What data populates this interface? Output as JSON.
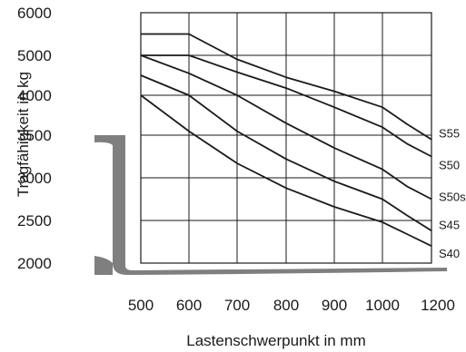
{
  "chart_data": {
    "type": "line",
    "xlabel": "Lastenschwerpunkt in mm",
    "ylabel": "Tragfähigkeit in kg",
    "xlim": [
      500,
      1200
    ],
    "ylim": [
      2000,
      6000
    ],
    "x_ticks": [
      "500",
      "600",
      "700",
      "800",
      "900",
      "1000",
      "1200"
    ],
    "y_ticks": [
      "2000",
      "2500",
      "3000",
      "3500",
      "4000",
      "5000",
      "6000"
    ],
    "grid": true,
    "series": [
      {
        "name": "S55",
        "x": [
          500,
          600,
          700,
          800,
          900,
          1000,
          1100,
          1200
        ],
        "y": [
          5500,
          5500,
          4900,
          4450,
          4100,
          3850,
          3640,
          3450
        ]
      },
      {
        "name": "S50",
        "x": [
          500,
          600,
          700,
          800,
          900,
          1000,
          1100,
          1200
        ],
        "y": [
          5000,
          5000,
          4580,
          4180,
          3850,
          3600,
          3400,
          3250
        ]
      },
      {
        "name": "S50s",
        "x": [
          500,
          600,
          700,
          800,
          900,
          1000,
          1100,
          1200
        ],
        "y": [
          5000,
          4550,
          4000,
          3650,
          3350,
          3100,
          2900,
          2750
        ]
      },
      {
        "name": "S45",
        "x": [
          500,
          600,
          700,
          800,
          900,
          1000,
          1100,
          1200
        ],
        "y": [
          4500,
          4000,
          3550,
          3220,
          2960,
          2750,
          2560,
          2380
        ]
      },
      {
        "name": "S40",
        "x": [
          500,
          600,
          700,
          800,
          900,
          1000,
          1100,
          1200
        ],
        "y": [
          4000,
          3550,
          3170,
          2880,
          2660,
          2480,
          2340,
          2200
        ]
      }
    ]
  },
  "colors": {
    "line": "#1a1a1a",
    "grid": "#1a1a1a",
    "fork": "#7f7f7f"
  }
}
